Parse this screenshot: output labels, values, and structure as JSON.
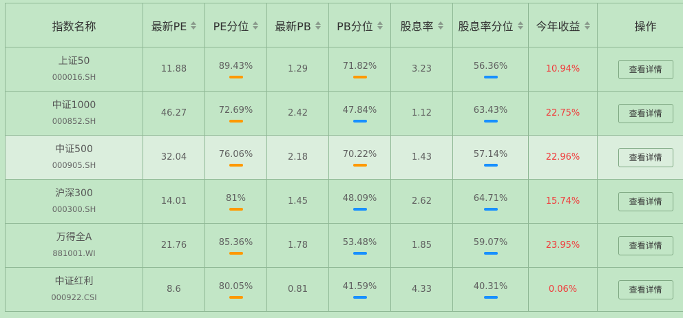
{
  "colors": {
    "high": "#ff9900",
    "low": "#1890ff",
    "gain": "#f03b3b"
  },
  "header": {
    "name": "指数名称",
    "pe": "最新PE",
    "pe_pct": "PE分位",
    "pb": "最新PB",
    "pb_pct": "PB分位",
    "div": "股息率",
    "div_pct": "股息率分位",
    "ytd": "今年收益",
    "action": "操作"
  },
  "rows": [
    {
      "name": "上证50",
      "code": "000016.SH",
      "pe": "11.88",
      "pe_pct": "89.43%",
      "pe_bar": "high",
      "pb": "1.29",
      "pb_pct": "71.82%",
      "pb_bar": "high",
      "div": "3.23",
      "div_pct": "56.36%",
      "div_bar": "low",
      "ytd": "10.94%",
      "action": "查看详情"
    },
    {
      "name": "中证1000",
      "code": "000852.SH",
      "pe": "46.27",
      "pe_pct": "72.69%",
      "pe_bar": "high",
      "pb": "2.42",
      "pb_pct": "47.84%",
      "pb_bar": "low",
      "div": "1.12",
      "div_pct": "63.43%",
      "div_bar": "low",
      "ytd": "22.75%",
      "action": "查看详情"
    },
    {
      "name": "中证500",
      "code": "000905.SH",
      "pe": "32.04",
      "pe_pct": "76.06%",
      "pe_bar": "high",
      "pb": "2.18",
      "pb_pct": "70.22%",
      "pb_bar": "high",
      "div": "1.43",
      "div_pct": "57.14%",
      "div_bar": "low",
      "ytd": "22.96%",
      "action": "查看详情"
    },
    {
      "name": "沪深300",
      "code": "000300.SH",
      "pe": "14.01",
      "pe_pct": "81%",
      "pe_bar": "high",
      "pb": "1.45",
      "pb_pct": "48.09%",
      "pb_bar": "low",
      "div": "2.62",
      "div_pct": "64.71%",
      "div_bar": "low",
      "ytd": "15.74%",
      "action": "查看详情"
    },
    {
      "name": "万得全A",
      "code": "881001.WI",
      "pe": "21.76",
      "pe_pct": "85.36%",
      "pe_bar": "high",
      "pb": "1.78",
      "pb_pct": "53.48%",
      "pb_bar": "low",
      "div": "1.85",
      "div_pct": "59.07%",
      "div_bar": "low",
      "ytd": "23.95%",
      "action": "查看详情"
    },
    {
      "name": "中证红利",
      "code": "000922.CSI",
      "pe": "8.6",
      "pe_pct": "80.05%",
      "pe_bar": "high",
      "pb": "0.81",
      "pb_pct": "41.59%",
      "pb_bar": "low",
      "div": "4.33",
      "div_pct": "40.31%",
      "div_bar": "low",
      "ytd": "0.06%",
      "action": "查看详情"
    }
  ]
}
